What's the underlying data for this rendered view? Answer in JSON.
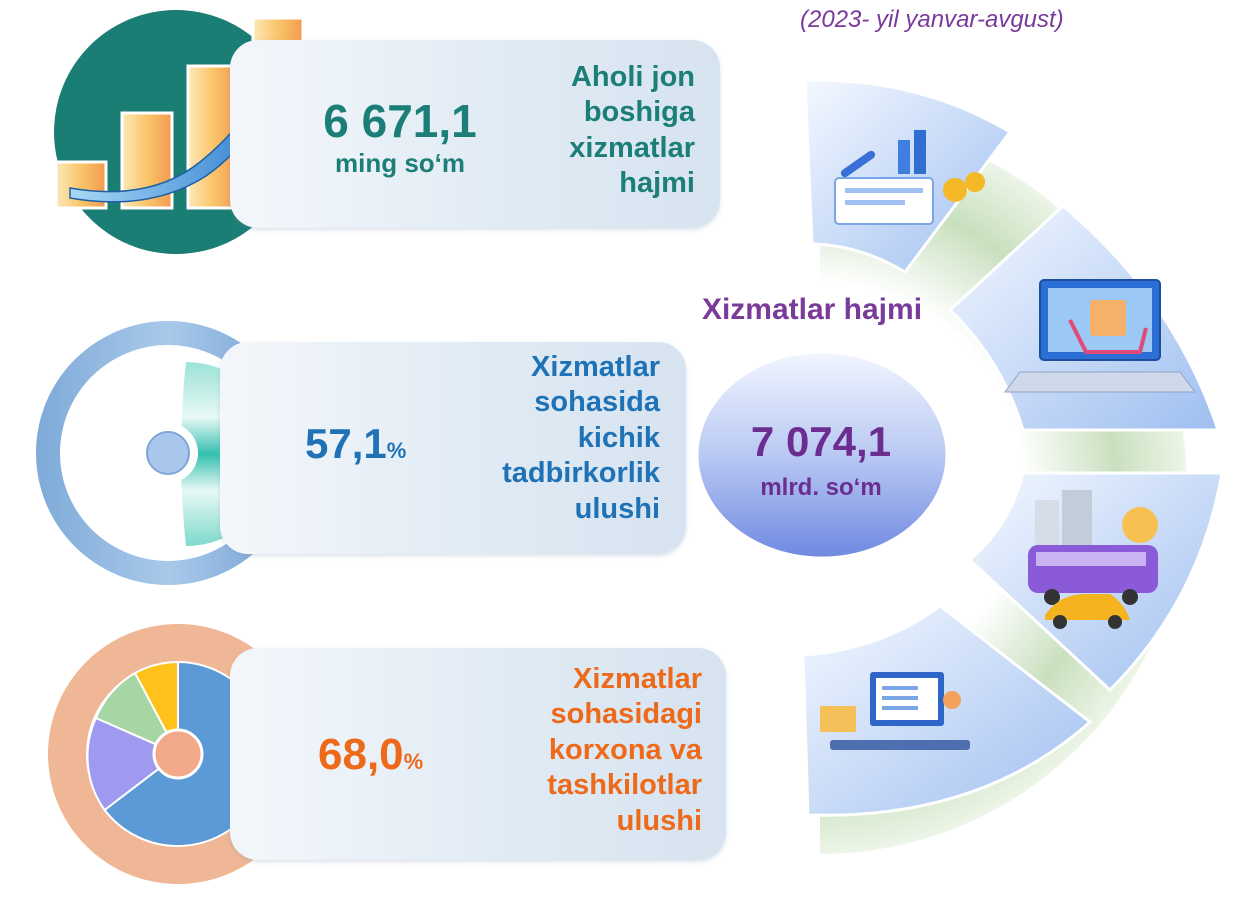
{
  "header": {
    "subtitle": "(2023- yil yanvar-avgust)"
  },
  "items": [
    {
      "value": "6 671,1",
      "unit": "ming so‘m",
      "label_lines": [
        "Aholi jon",
        "boshiga",
        "xizmatlar",
        "hajmi"
      ]
    },
    {
      "value": "57,1",
      "unit": "%",
      "label_lines": [
        "Xizmatlar",
        "sohasida",
        "kichik",
        "tadbirkorlik",
        "ulushi"
      ]
    },
    {
      "value": "68,0",
      "unit": "%",
      "label_lines": [
        "Xizmatlar",
        "sohasidagi",
        "korxona va",
        "tashkilotlar",
        "ulushi"
      ]
    }
  ],
  "center": {
    "title": "Xizmatlar hajmi",
    "value": "7 074,1",
    "unit": "mlrd. so‘m"
  },
  "icons": [
    "bar-chart-growth-icon",
    "ring-share-icon",
    "pie-share-icon",
    "finance-report-icon",
    "online-shopping-icon",
    "city-transport-icon",
    "education-computer-icon"
  ],
  "colors": {
    "teal": "#1b7f78",
    "blue": "#1e72b5",
    "orange": "#ee6a1b",
    "purple": "#7a3a9a"
  }
}
